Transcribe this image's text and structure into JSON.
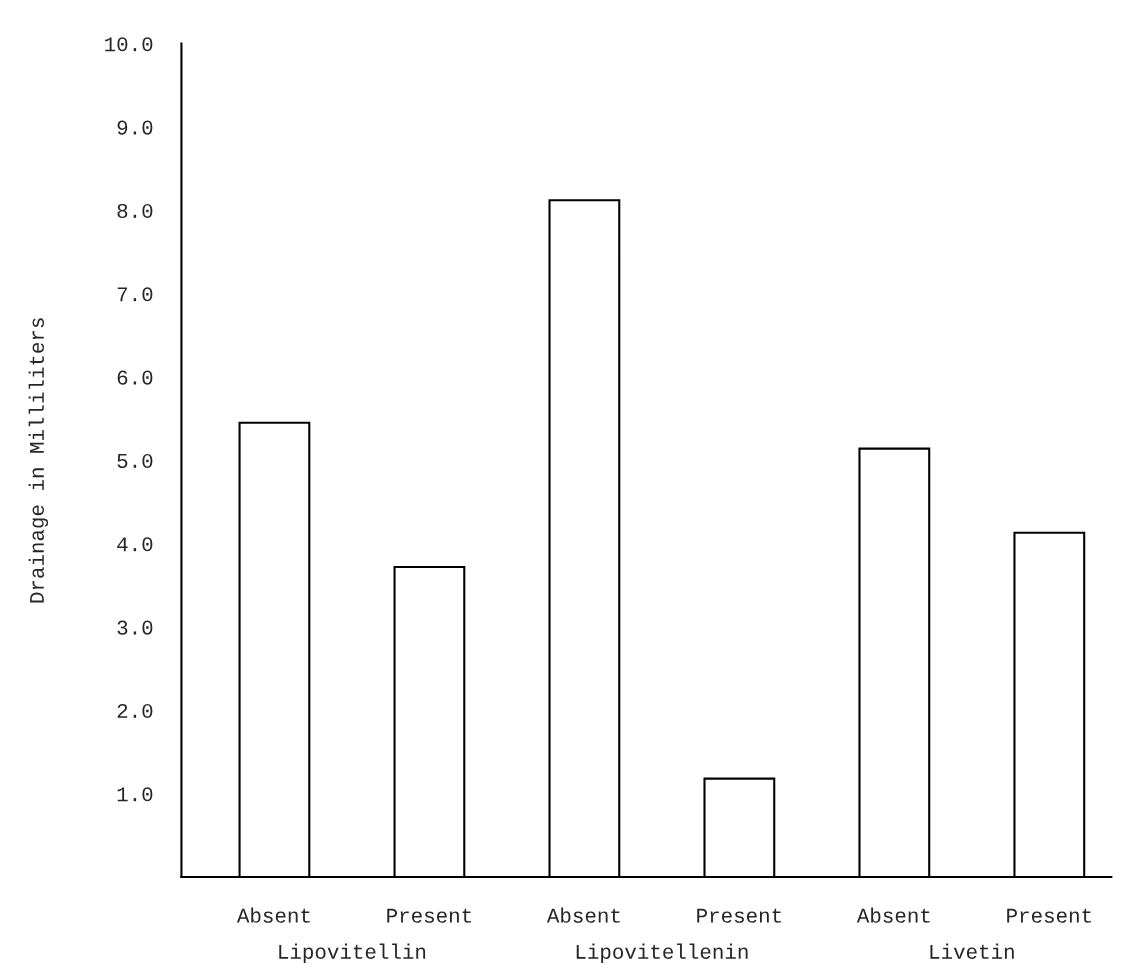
{
  "chart_data": {
    "type": "bar",
    "ylabel": "Drainage in Milliliters",
    "categories": [
      "Absent",
      "Present",
      "Absent",
      "Present",
      "Absent",
      "Present"
    ],
    "values": [
      5.45,
      3.72,
      8.12,
      1.18,
      5.14,
      4.13
    ],
    "color": "#ffffff",
    "ylim": [
      0,
      10
    ],
    "yticks": [
      {
        "value": 1,
        "label": "1.0"
      },
      {
        "value": 2,
        "label": "2.0"
      },
      {
        "value": 3,
        "label": "3.0"
      },
      {
        "value": 4,
        "label": "4.0"
      },
      {
        "value": 5,
        "label": "5.0"
      },
      {
        "value": 6,
        "label": "6.0"
      },
      {
        "value": 7,
        "label": "7.0"
      },
      {
        "value": 8,
        "label": "8.0"
      },
      {
        "value": 9,
        "label": "9.0"
      },
      {
        "value": 10,
        "label": "10.0"
      }
    ],
    "grid": false,
    "annotations": [
      "Lipovitellin",
      "Lipovitellenin",
      "Livetin"
    ]
  }
}
